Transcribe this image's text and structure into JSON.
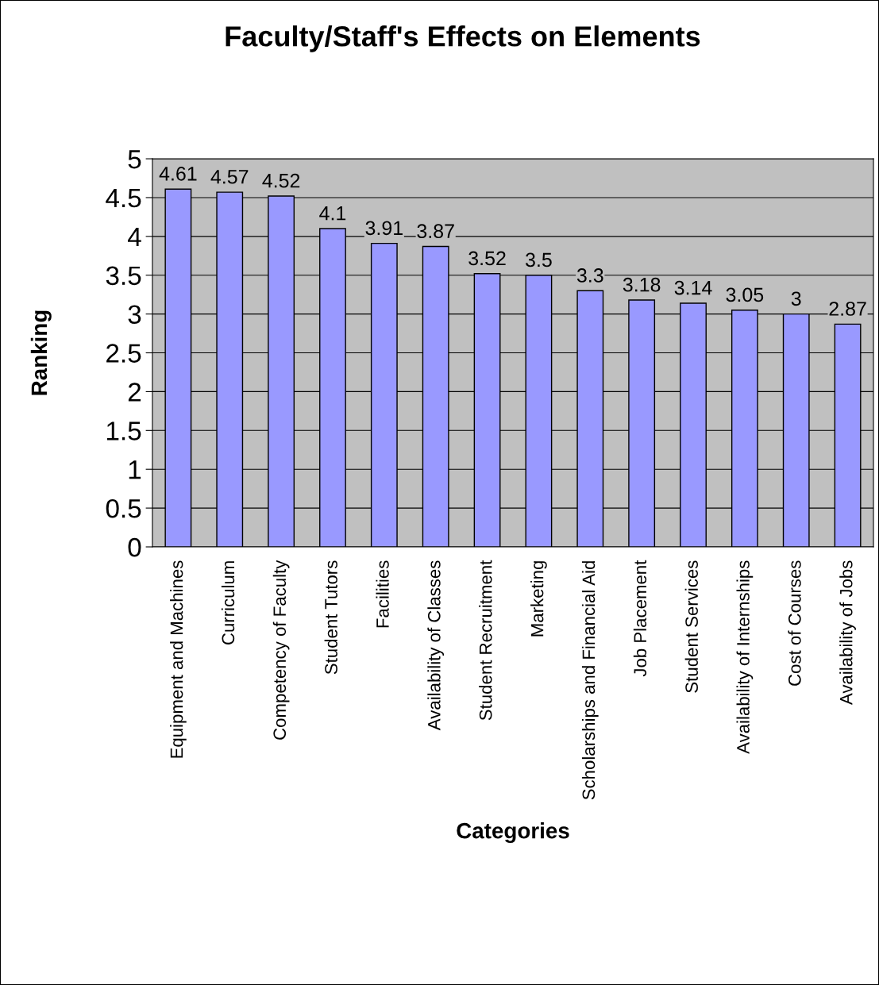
{
  "chart_data": {
    "type": "bar",
    "title": "Faculty/Staff's Effects on Elements",
    "xlabel": "Categories",
    "ylabel": "Ranking",
    "categories": [
      "Equipment and Machines",
      "Curriculum",
      "Competency of Faculty",
      "Student Tutors",
      "Facilities",
      "Availability of Classes",
      "Student Recruitment",
      "Marketing",
      "Scholarships and Financial Aid",
      "Job Placement",
      "Student Services",
      "Availability of Internships",
      "Cost of Courses",
      "Availability of Jobs"
    ],
    "values": [
      4.61,
      4.57,
      4.52,
      4.1,
      3.91,
      3.87,
      3.52,
      3.5,
      3.3,
      3.18,
      3.14,
      3.05,
      3,
      2.87
    ],
    "color": "#9999ff",
    "ylim": [
      0,
      5
    ],
    "yticks": [
      0,
      0.5,
      1,
      1.5,
      2,
      2.5,
      3,
      3.5,
      4,
      4.5,
      5
    ],
    "grid": "y",
    "data_labels": true,
    "legend": false
  }
}
